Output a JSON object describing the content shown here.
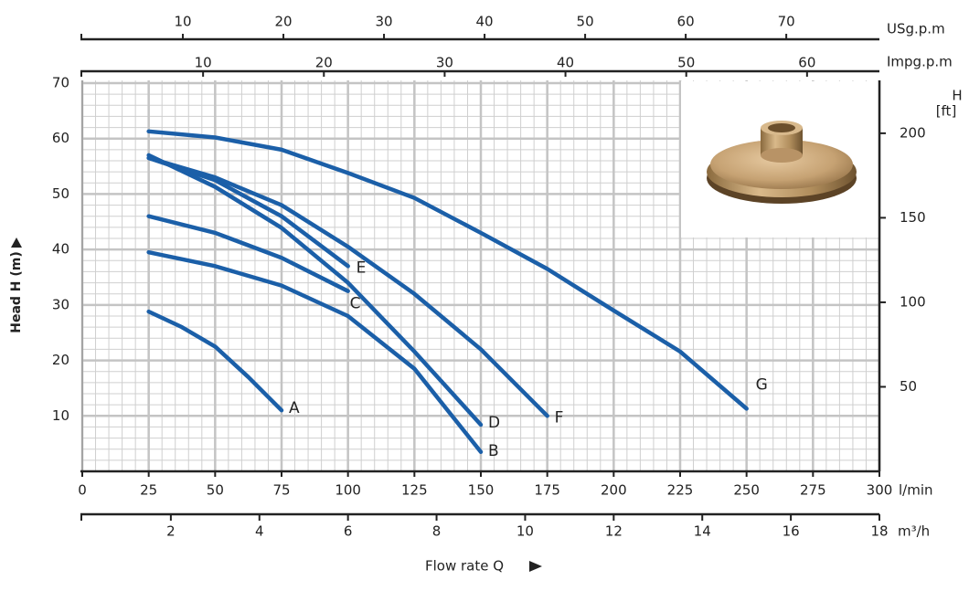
{
  "chart_data": {
    "type": "line",
    "y_label": "Head H (m)",
    "x_label": "Flow rate Q",
    "x_unit": "l/min",
    "xlim": [
      0,
      300
    ],
    "xticks": [
      0,
      25,
      50,
      75,
      100,
      125,
      150,
      175,
      200,
      225,
      250,
      275,
      300
    ],
    "ylim": [
      0,
      70
    ],
    "yticks": [
      10,
      20,
      30,
      40,
      50,
      60,
      70
    ],
    "y2_label": "H",
    "y2_unit": "[ft]",
    "y2lim": [
      0,
      229.66
    ],
    "y2ticks": [
      50,
      100,
      150,
      200
    ],
    "x_axes": [
      {
        "name": "USg.p.m",
        "lim": [
          0,
          79.26
        ],
        "ticks": [
          10,
          20,
          30,
          40,
          50,
          60,
          70
        ]
      },
      {
        "name": "Impg.p.m",
        "lim": [
          0,
          65.99
        ],
        "ticks": [
          10,
          20,
          30,
          40,
          50,
          60
        ]
      },
      {
        "name": "m³/h",
        "lim": [
          0,
          18
        ],
        "ticks": [
          2,
          4,
          6,
          8,
          10,
          12,
          14,
          16,
          18
        ]
      }
    ],
    "grid": true,
    "series": [
      {
        "name": "A",
        "color": "#1b5fa8",
        "x": [
          25,
          37.5,
          50,
          62.5,
          75
        ],
        "values": [
          28.8,
          26,
          22.5,
          17,
          11
        ]
      },
      {
        "name": "B",
        "color": "#1b5fa8",
        "x": [
          25,
          50,
          75,
          100,
          125,
          150
        ],
        "values": [
          39.5,
          37,
          33.5,
          28,
          18.5,
          3.5
        ]
      },
      {
        "name": "C",
        "color": "#1b5fa8",
        "x": [
          25,
          50,
          75,
          100
        ],
        "values": [
          46,
          43,
          38.5,
          32.5
        ]
      },
      {
        "name": "D",
        "color": "#1b5fa8",
        "x": [
          25,
          50,
          75,
          100,
          125,
          150
        ],
        "values": [
          57,
          51.3,
          43.9,
          34,
          21.6,
          8.4
        ]
      },
      {
        "name": "E",
        "color": "#1b5fa8",
        "x": [
          25,
          50,
          75,
          100
        ],
        "values": [
          56.5,
          52.5,
          46,
          37
        ]
      },
      {
        "name": "F",
        "color": "#1b5fa8",
        "x": [
          25,
          50,
          75,
          100,
          125,
          150,
          175
        ],
        "values": [
          56.5,
          53,
          48,
          40.5,
          32,
          22,
          10
        ]
      },
      {
        "name": "G",
        "color": "#1b5fa8",
        "x": [
          25,
          50,
          75,
          100,
          125,
          150,
          175,
          200,
          225,
          250
        ],
        "values": [
          61.3,
          60.2,
          58,
          53.8,
          49.3,
          43,
          36.5,
          29,
          21.6,
          11.3
        ]
      }
    ]
  }
}
